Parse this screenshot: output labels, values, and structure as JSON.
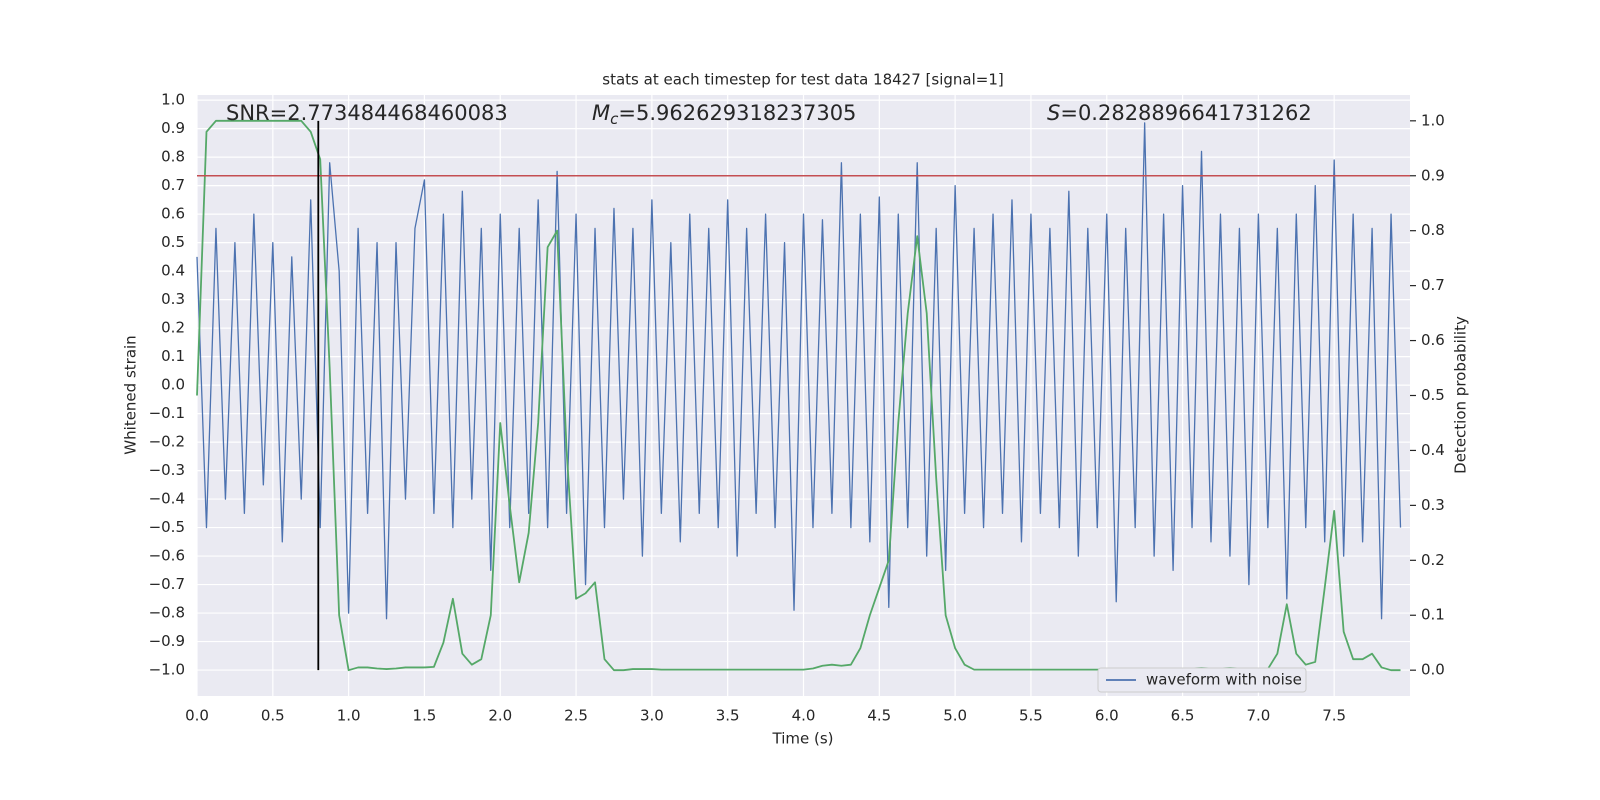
{
  "chart_data": {
    "type": "line",
    "title": "stats at each timestep for test data 18427 [signal=1]",
    "xlabel": "Time (s)",
    "ylabel": "Whitened strain",
    "y2label": "Detection probability",
    "grid": true,
    "legend": "lower right",
    "x": [
      0,
      0.0625,
      0.125,
      0.1875,
      0.25,
      0.3125,
      0.375,
      0.4375,
      0.5,
      0.5625,
      0.625,
      0.6875,
      0.75,
      0.8125,
      0.875,
      0.9375,
      1,
      1.0625,
      1.125,
      1.1875,
      1.25,
      1.3125,
      1.375,
      1.4375,
      1.5,
      1.5625,
      1.625,
      1.6875,
      1.75,
      1.8125,
      1.875,
      1.9375,
      2,
      2.0625,
      2.125,
      2.1875,
      2.25,
      2.3125,
      2.375,
      2.4375,
      2.5,
      2.5625,
      2.625,
      2.6875,
      2.75,
      2.8125,
      2.875,
      2.9375,
      3,
      3.0625,
      3.125,
      3.1875,
      3.25,
      3.3125,
      3.375,
      3.4375,
      3.5,
      3.5625,
      3.625,
      3.6875,
      3.75,
      3.8125,
      3.875,
      3.9375,
      4,
      4.0625,
      4.125,
      4.1875,
      4.25,
      4.3125,
      4.375,
      4.4375,
      4.5,
      4.5625,
      4.625,
      4.6875,
      4.75,
      4.8125,
      4.875,
      4.9375,
      5,
      5.0625,
      5.125,
      5.1875,
      5.25,
      5.3125,
      5.375,
      5.4375,
      5.5,
      5.5625,
      5.625,
      5.6875,
      5.75,
      5.8125,
      5.875,
      5.9375,
      6,
      6.0625,
      6.125,
      6.1875,
      6.25,
      6.3125,
      6.375,
      6.4375,
      6.5,
      6.5625,
      6.625,
      6.6875,
      6.75,
      6.8125,
      6.875,
      6.9375,
      7,
      7.0625,
      7.125,
      7.1875,
      7.25,
      7.3125,
      7.375,
      7.4375,
      7.5,
      7.5625,
      7.625,
      7.6875,
      7.75,
      7.8125,
      7.875,
      7.9375
    ],
    "series": [
      {
        "name": "waveform with noise",
        "color": "#4c72b0",
        "axis": "y",
        "values": [
          0.45,
          -0.5,
          0.55,
          -0.4,
          0.5,
          -0.45,
          0.6,
          -0.35,
          0.5,
          -0.55,
          0.45,
          -0.4,
          0.65,
          -0.5,
          0.78,
          0.4,
          -0.8,
          0.55,
          -0.45,
          0.5,
          -0.82,
          0.5,
          -0.4,
          0.55,
          0.72,
          -0.45,
          0.6,
          -0.5,
          0.68,
          -0.4,
          0.55,
          -0.65,
          0.6,
          -0.5,
          0.55,
          -0.45,
          0.65,
          -0.5,
          0.75,
          -0.45,
          0.6,
          -0.7,
          0.55,
          -0.5,
          0.62,
          -0.4,
          0.55,
          -0.6,
          0.65,
          -0.45,
          0.5,
          -0.55,
          0.6,
          -0.45,
          0.55,
          -0.5,
          0.65,
          -0.6,
          0.55,
          -0.45,
          0.6,
          -0.5,
          0.5,
          -0.79,
          0.6,
          -0.5,
          0.58,
          -0.45,
          0.78,
          -0.5,
          0.6,
          -0.55,
          0.66,
          -0.78,
          0.6,
          -0.5,
          0.78,
          -0.6,
          0.55,
          -0.65,
          0.7,
          -0.45,
          0.55,
          -0.5,
          0.6,
          -0.45,
          0.65,
          -0.55,
          0.6,
          -0.45,
          0.55,
          -0.5,
          0.68,
          -0.6,
          0.55,
          -0.5,
          0.6,
          -0.76,
          0.55,
          -0.5,
          0.92,
          -0.6,
          0.6,
          -0.65,
          0.7,
          -0.5,
          0.82,
          -0.55,
          0.6,
          -0.6,
          0.55,
          -0.7,
          0.6,
          -0.5,
          0.55,
          -0.75,
          0.6,
          -0.5,
          0.7,
          -0.55,
          0.79,
          -0.6,
          0.6,
          -0.55,
          0.55,
          -0.82,
          0.6,
          -0.5
        ]
      },
      {
        "color": "#55a868",
        "axis": "y2",
        "values": [
          0.5,
          0.98,
          1.0,
          1.0,
          1.0,
          1.0,
          1.0,
          1.0,
          1.0,
          1.0,
          1.0,
          1.0,
          0.98,
          0.93,
          0.55,
          0.1,
          0.0,
          0.005,
          0.005,
          0.003,
          0.002,
          0.003,
          0.005,
          0.005,
          0.005,
          0.006,
          0.05,
          0.13,
          0.03,
          0.01,
          0.02,
          0.1,
          0.45,
          0.3,
          0.16,
          0.25,
          0.45,
          0.77,
          0.8,
          0.4,
          0.13,
          0.14,
          0.16,
          0.02,
          0.0,
          0.0,
          0.002,
          0.002,
          0.002,
          0.001,
          0.001,
          0.001,
          0.001,
          0.001,
          0.001,
          0.001,
          0.001,
          0.001,
          0.001,
          0.001,
          0.001,
          0.001,
          0.001,
          0.001,
          0.001,
          0.003,
          0.008,
          0.01,
          0.008,
          0.01,
          0.04,
          0.1,
          0.15,
          0.2,
          0.45,
          0.65,
          0.79,
          0.65,
          0.35,
          0.1,
          0.04,
          0.01,
          0.001,
          0.001,
          0.001,
          0.001,
          0.001,
          0.001,
          0.001,
          0.001,
          0.001,
          0.001,
          0.001,
          0.001,
          0.001,
          0.001,
          0.001,
          0.002,
          0.003,
          0.002,
          0.002,
          0.002,
          0.002,
          0.002,
          0.002,
          0.003,
          0.004,
          0.003,
          0.003,
          0.004,
          0.003,
          0.003,
          0.002,
          0.002,
          0.03,
          0.12,
          0.03,
          0.01,
          0.015,
          0.15,
          0.29,
          0.07,
          0.02,
          0.02,
          0.03,
          0.005,
          0.0,
          0.0
        ]
      }
    ],
    "hline": {
      "value": 0.9,
      "axis": "y2",
      "color": "#c44e52"
    },
    "vline": {
      "x": 0.8,
      "y2min": 0.0,
      "y2max": 1.0,
      "color": "#000000"
    },
    "annotations": [
      {
        "text": "SNR=2.773484468460083"
      },
      {
        "symbol": "M",
        "subscript": "c",
        "text": "=5.962629318237305"
      },
      {
        "symbol": "S",
        "text": "=0.2828896641731262"
      }
    ],
    "xlim": [
      0,
      8
    ],
    "ylim": [
      -1.091,
      1.018
    ],
    "y2lim": [
      -0.047,
      1.047
    ],
    "xticks": [
      {
        "value": 0,
        "label": "0.0"
      },
      0.5,
      {
        "value": 1,
        "label": "1.0"
      },
      1.5,
      {
        "value": 2,
        "label": "2.0"
      },
      2.5,
      {
        "value": 3,
        "label": "3.0"
      },
      3.5,
      {
        "value": 4,
        "label": "4.0"
      },
      4.5,
      {
        "value": 5,
        "label": "5.0"
      },
      5.5,
      {
        "value": 6,
        "label": "6.0"
      },
      6.5,
      {
        "value": 7,
        "label": "7.0"
      },
      7.5
    ],
    "yticks": [
      {
        "value": -1,
        "label": "−1.0"
      },
      {
        "value": -0.9,
        "label": "−0.9"
      },
      {
        "value": -0.8,
        "label": "−0.8"
      },
      {
        "value": -0.7,
        "label": "−0.7"
      },
      {
        "value": -0.6,
        "label": "−0.6"
      },
      {
        "value": -0.5,
        "label": "−0.5"
      },
      {
        "value": -0.4,
        "label": "−0.4"
      },
      {
        "value": -0.3,
        "label": "−0.3"
      },
      {
        "value": -0.2,
        "label": "−0.2"
      },
      {
        "value": -0.1,
        "label": "−0.1"
      },
      {
        "value": 0,
        "label": "0.0"
      },
      0.1,
      0.2,
      0.3,
      0.4,
      0.5,
      0.6,
      0.7,
      0.8,
      0.9,
      {
        "value": 1,
        "label": "1.0"
      }
    ],
    "y2ticks": [
      {
        "value": 0,
        "label": "0.0"
      },
      0.1,
      0.2,
      0.3,
      0.4,
      0.5,
      0.6,
      0.7,
      0.8,
      0.9,
      {
        "value": 1,
        "label": "1.0"
      }
    ]
  }
}
